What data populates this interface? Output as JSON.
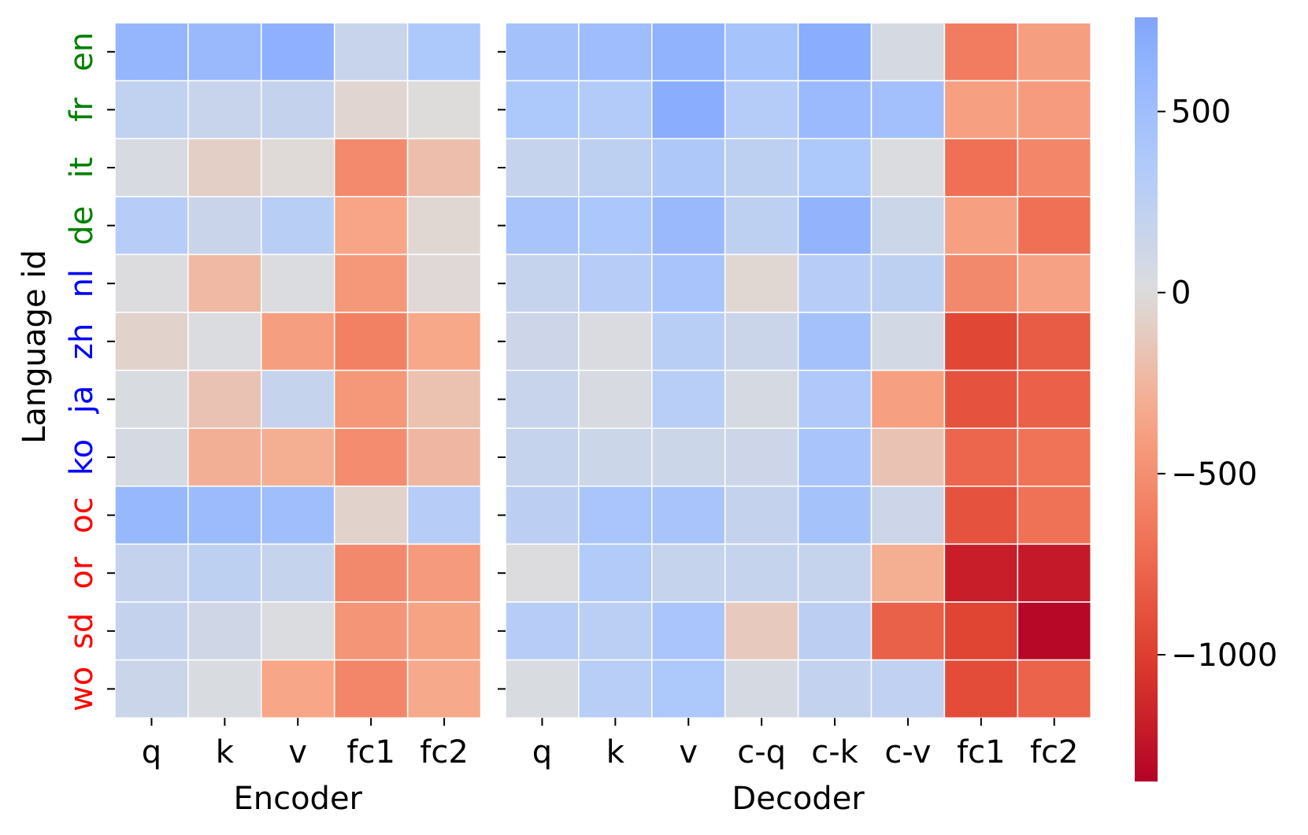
{
  "chart_data": {
    "type": "heatmap",
    "ylabel": "Language id",
    "languages": [
      "en",
      "fr",
      "it",
      "de",
      "nl",
      "zh",
      "ja",
      "ko",
      "oc",
      "or",
      "sd",
      "wo"
    ],
    "language_colors": [
      "#008000",
      "#008000",
      "#008000",
      "#008000",
      "#0000ff",
      "#0000ff",
      "#0000ff",
      "#0000ff",
      "#ff0000",
      "#ff0000",
      "#ff0000",
      "#ff0000"
    ],
    "colorscale": {
      "vmin": -1350,
      "vmax": 760,
      "center": 0,
      "map": "coolwarm_r"
    },
    "colorbar_ticks": [
      {
        "value": 500,
        "label": "500"
      },
      {
        "value": 0,
        "label": "0"
      },
      {
        "value": -500,
        "label": "−500"
      },
      {
        "value": -1000,
        "label": "−1000"
      }
    ],
    "panels": [
      {
        "xlabel": "Encoder",
        "columns": [
          "q",
          "k",
          "v",
          "fc1",
          "fc2"
        ],
        "values": [
          [
            600,
            560,
            670,
            170,
            380
          ],
          [
            220,
            170,
            200,
            -50,
            -10
          ],
          [
            50,
            -90,
            -20,
            -530,
            -200
          ],
          [
            300,
            160,
            280,
            -360,
            -40
          ],
          [
            10,
            -230,
            20,
            -440,
            -30
          ],
          [
            -70,
            20,
            -400,
            -600,
            -340
          ],
          [
            40,
            -170,
            180,
            -450,
            -180
          ],
          [
            60,
            -290,
            -300,
            -510,
            -240
          ],
          [
            580,
            540,
            500,
            -70,
            300
          ],
          [
            200,
            240,
            180,
            -540,
            -430
          ],
          [
            200,
            110,
            20,
            -460,
            -370
          ],
          [
            150,
            40,
            -350,
            -560,
            -330
          ]
        ]
      },
      {
        "xlabel": "Decoder",
        "columns": [
          "q",
          "k",
          "v",
          "c-q",
          "c-k",
          "c-v",
          "fc1",
          "fc2"
        ],
        "values": [
          [
            460,
            510,
            640,
            440,
            700,
            60,
            -620,
            -400
          ],
          [
            380,
            330,
            700,
            310,
            550,
            470,
            -390,
            -420
          ],
          [
            190,
            240,
            370,
            240,
            380,
            20,
            -700,
            -560
          ],
          [
            420,
            390,
            560,
            250,
            620,
            140,
            -390,
            -700
          ],
          [
            190,
            300,
            430,
            -40,
            300,
            240,
            -540,
            -380
          ],
          [
            130,
            30,
            280,
            150,
            460,
            80,
            -950,
            -820
          ],
          [
            170,
            50,
            290,
            60,
            360,
            -390,
            -880,
            -800
          ],
          [
            180,
            140,
            140,
            130,
            420,
            -170,
            -760,
            -680
          ],
          [
            260,
            410,
            420,
            200,
            450,
            130,
            -880,
            -690
          ],
          [
            10,
            330,
            190,
            190,
            190,
            -300,
            -1190,
            -1220
          ],
          [
            300,
            270,
            410,
            -130,
            260,
            -790,
            -970,
            -1320
          ],
          [
            40,
            290,
            380,
            60,
            210,
            230,
            -920,
            -780
          ]
        ]
      }
    ]
  }
}
